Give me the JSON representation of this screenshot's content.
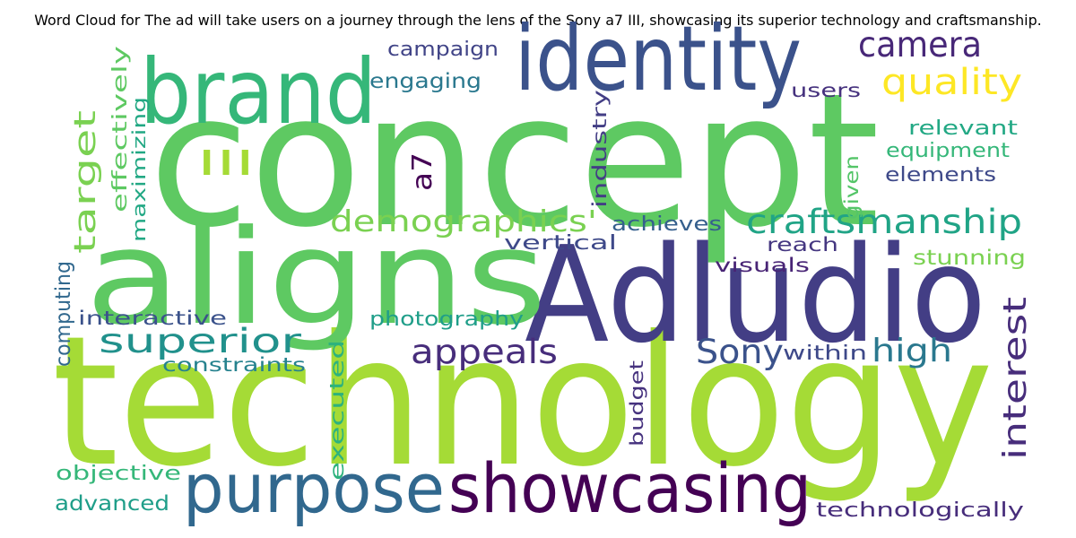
{
  "title": "Word Cloud for The ad will take users on a journey through the lens of the Sony a7 III, showcasing its superior technology and craftsmanship.",
  "words": [
    {
      "text": "concept",
      "color": "#5ec962"
    },
    {
      "text": "technology",
      "color": "#a5db36"
    },
    {
      "text": "Adludio",
      "color": "#433e85"
    },
    {
      "text": "aligns",
      "color": "#5ec962"
    },
    {
      "text": "brand",
      "color": "#35b779"
    },
    {
      "text": "identity",
      "color": "#3b528b"
    },
    {
      "text": "purpose",
      "color": "#31688e"
    },
    {
      "text": "showcasing",
      "color": "#440154"
    },
    {
      "text": "camera",
      "color": "#482878"
    },
    {
      "text": "quality",
      "color": "#fde725"
    },
    {
      "text": "craftsmanship",
      "color": "#20a486"
    },
    {
      "text": "demographics'",
      "color": "#7ad151"
    },
    {
      "text": "superior",
      "color": "#21918c"
    },
    {
      "text": "appeals",
      "color": "#472d7b"
    },
    {
      "text": "Sony",
      "color": "#3b528b"
    },
    {
      "text": "high",
      "color": "#2a788e"
    },
    {
      "text": "interest",
      "color": "#472d7b"
    },
    {
      "text": "target",
      "color": "#7ad151"
    },
    {
      "text": "III",
      "color": "#a5db36"
    },
    {
      "text": "a7",
      "color": "#440154"
    },
    {
      "text": "campaign",
      "color": "#414487"
    },
    {
      "text": "engaging",
      "color": "#2a788e"
    },
    {
      "text": "users",
      "color": "#46327e"
    },
    {
      "text": "relevant",
      "color": "#22a884"
    },
    {
      "text": "equipment",
      "color": "#35b779"
    },
    {
      "text": "elements",
      "color": "#3e4989"
    },
    {
      "text": "given",
      "color": "#54c568"
    },
    {
      "text": "effectively",
      "color": "#5ec962"
    },
    {
      "text": "maximizing",
      "color": "#22a884"
    },
    {
      "text": "industry",
      "color": "#433e85"
    },
    {
      "text": "achieves",
      "color": "#355f8d"
    },
    {
      "text": "reach",
      "color": "#453781"
    },
    {
      "text": "vertical",
      "color": "#3e4989"
    },
    {
      "text": "stunning",
      "color": "#7ad151"
    },
    {
      "text": "visuals",
      "color": "#482475"
    },
    {
      "text": "computing",
      "color": "#31688e"
    },
    {
      "text": "interactive",
      "color": "#3b528b"
    },
    {
      "text": "photography",
      "color": "#1f9e89"
    },
    {
      "text": "constraints",
      "color": "#26828e"
    },
    {
      "text": "within",
      "color": "#3e4989"
    },
    {
      "text": "executed",
      "color": "#2db27d"
    },
    {
      "text": "budget",
      "color": "#46327e"
    },
    {
      "text": "objective",
      "color": "#35b779"
    },
    {
      "text": "advanced",
      "color": "#1f9e89"
    },
    {
      "text": "technologically",
      "color": "#472d7b"
    }
  ]
}
